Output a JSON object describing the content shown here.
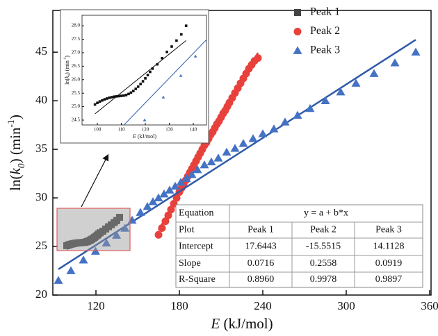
{
  "chart_data": {
    "type": "scatter",
    "x_label": [
      "E",
      " (kJ/mol)"
    ],
    "y_label": [
      "ln(",
      "k",
      "0",
      ") (min",
      "-1",
      ")"
    ],
    "xlim": [
      89,
      361
    ],
    "ylim": [
      20,
      49.3
    ],
    "xticks": [
      120,
      180,
      240,
      300,
      360
    ],
    "yticks": [
      20,
      25,
      30,
      35,
      40,
      45
    ],
    "legend": "upper right",
    "series": [
      {
        "name": "Peak 1",
        "color": "#444444",
        "marker": "square",
        "line_color": "#111111",
        "x": [
          99,
          100,
          101,
          102,
          103,
          104,
          105,
          106,
          107,
          108,
          109,
          110,
          111,
          112,
          113,
          114,
          115,
          116,
          117,
          118,
          119,
          120,
          121,
          122,
          123,
          125,
          127,
          129,
          131,
          133,
          135,
          137
        ],
        "values": [
          25.08,
          25.14,
          25.19,
          25.23,
          25.27,
          25.3,
          25.33,
          25.35,
          25.37,
          25.38,
          25.39,
          25.4,
          25.41,
          25.43,
          25.47,
          25.52,
          25.58,
          25.66,
          25.74,
          25.84,
          25.94,
          26.05,
          26.17,
          26.29,
          26.41,
          26.57,
          26.8,
          27.03,
          27.23,
          27.45,
          27.68,
          28.0
        ]
      },
      {
        "name": "Peak 2",
        "color": "#e8413c",
        "marker": "circle",
        "line_color": "#e8413c",
        "x": [
          165,
          167.5,
          170,
          172,
          174,
          176,
          178,
          180,
          181.5,
          183,
          184.5,
          186,
          187.5,
          189,
          190.5,
          192,
          193.5,
          195,
          196.5,
          198,
          199.5,
          201,
          202.5,
          204,
          205.5,
          207,
          208.5,
          210,
          211.5,
          213,
          214.5,
          216,
          218,
          220,
          222,
          224,
          226,
          228,
          230,
          232,
          234,
          236.5
        ],
        "values": [
          26.2,
          26.9,
          27.6,
          28.2,
          28.8,
          29.4,
          30.0,
          30.6,
          31.0,
          31.4,
          31.8,
          32.2,
          32.6,
          33.0,
          33.4,
          33.8,
          34.2,
          34.6,
          35.0,
          35.4,
          35.7,
          36.1,
          36.5,
          36.8,
          37.2,
          37.6,
          37.9,
          38.3,
          38.7,
          39.0,
          39.4,
          39.8,
          40.3,
          40.8,
          41.3,
          41.8,
          42.3,
          42.8,
          43.3,
          43.7,
          44.1,
          44.4
        ]
      },
      {
        "name": "Peak 3",
        "color": "#4472c4",
        "marker": "triangle",
        "line_color": "#2f5aa8",
        "x": [
          93,
          102,
          111,
          119.7,
          127.5,
          134.8,
          140.9,
          146,
          152,
          157,
          161,
          165,
          169,
          173,
          177,
          181,
          185,
          189,
          193,
          198,
          203,
          208,
          214,
          220,
          226,
          233,
          240,
          248,
          256,
          265,
          274,
          285,
          296,
          307,
          320,
          335,
          350
        ],
        "values": [
          21.5,
          22.5,
          23.6,
          24.5,
          25.35,
          26.15,
          26.87,
          27.7,
          28.5,
          29.1,
          29.6,
          30.0,
          30.4,
          30.8,
          31.2,
          31.6,
          32.0,
          32.4,
          32.9,
          33.4,
          33.7,
          34.1,
          34.7,
          35.1,
          35.6,
          36.1,
          36.6,
          37.1,
          37.8,
          38.5,
          39.2,
          40.0,
          40.9,
          41.8,
          42.8,
          43.9,
          45.0
        ]
      }
    ],
    "fit_table": {
      "title": "Equation",
      "equation": "y = a + b*x",
      "header": [
        "Plot",
        "Peak 1",
        "Peak 2",
        "Peak 3"
      ],
      "rows": [
        {
          "label": "Intercept",
          "values": [
            17.6443,
            -15.5515,
            14.1128
          ]
        },
        {
          "label": "Slope",
          "values": [
            0.0716,
            0.2558,
            0.0919
          ]
        },
        {
          "label": "R-Square",
          "values": [
            {
              "value": 0.896,
              "label": "0.8960"
            },
            {
              "value": 0.9978,
              "label": "0.9978"
            },
            {
              "value": 0.9897,
              "label": "0.9897"
            }
          ]
        }
      ]
    },
    "inset": {
      "xlim": [
        93.6,
        145.5
      ],
      "ylim": [
        24.32,
        28.39
      ],
      "xticks": [
        100,
        110,
        120,
        130,
        140
      ],
      "yticks": [
        24.5,
        {
          "value": 25,
          "label": "25.0"
        },
        25.5,
        {
          "value": 26,
          "label": "26.0"
        },
        26.5,
        {
          "value": 27,
          "label": "27.0"
        },
        27.5,
        {
          "value": 28,
          "label": "28.0"
        }
      ],
      "x_label": [
        "E",
        " (kJ/mol)"
      ],
      "y_label": [
        "ln(",
        "k",
        "0",
        ") (min",
        "-1",
        ")"
      ]
    }
  }
}
